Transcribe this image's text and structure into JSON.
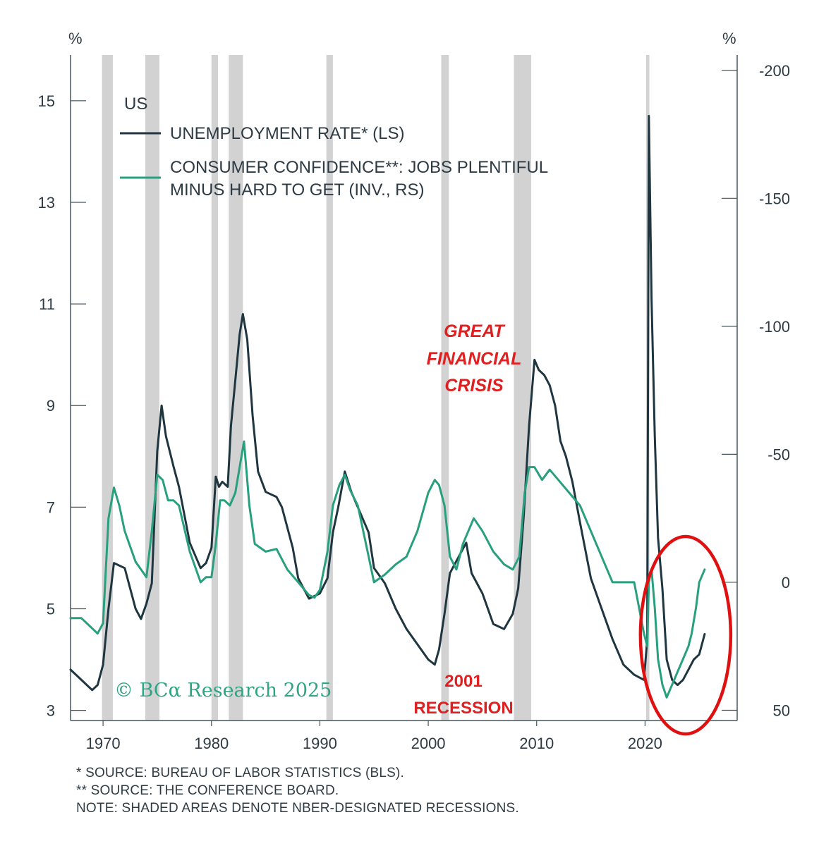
{
  "chart_data": {
    "type": "line",
    "title": "US",
    "left_axis": {
      "label": "%",
      "ticks": [
        3,
        5,
        7,
        9,
        11,
        13,
        15
      ],
      "range": [
        2.8,
        15.9
      ]
    },
    "right_axis": {
      "label": "%",
      "ticks": [
        -200,
        -150,
        -100,
        -50,
        0,
        50
      ],
      "range": [
        54,
        -206
      ],
      "inverted": true
    },
    "x_axis": {
      "ticks": [
        1970,
        1980,
        1990,
        2000,
        2010,
        2020
      ],
      "range": [
        1967.0,
        2028.5
      ]
    },
    "recessions": [
      [
        1969.9,
        1970.9
      ],
      [
        1973.9,
        1975.2
      ],
      [
        1980.0,
        1980.6
      ],
      [
        1981.6,
        1982.9
      ],
      [
        1990.6,
        1991.2
      ],
      [
        2001.2,
        2001.9
      ],
      [
        2007.9,
        2009.5
      ],
      [
        2020.1,
        2020.4
      ]
    ],
    "series": [
      {
        "name": "UNEMPLOYMENT RATE* (LS)",
        "axis": "left",
        "color": "#1f3640",
        "x": [
          1967.0,
          1968.0,
          1969.0,
          1969.5,
          1970.0,
          1970.5,
          1971.0,
          1972.0,
          1973.0,
          1973.5,
          1974.0,
          1974.5,
          1975.0,
          1975.4,
          1975.8,
          1976.5,
          1977.0,
          1978.0,
          1979.0,
          1979.5,
          1980.0,
          1980.4,
          1980.7,
          1981.0,
          1981.5,
          1981.8,
          1982.2,
          1982.6,
          1982.9,
          1983.3,
          1983.8,
          1984.3,
          1985.0,
          1986.0,
          1986.5,
          1987.5,
          1988.0,
          1989.0,
          1990.0,
          1990.7,
          1991.2,
          1991.7,
          1992.3,
          1992.9,
          1993.5,
          1994.5,
          1995.0,
          1996.0,
          1997.0,
          1998.0,
          1999.0,
          2000.0,
          2000.6,
          2001.0,
          2001.5,
          2002.0,
          2002.5,
          2003.0,
          2003.5,
          2004.0,
          2005.0,
          2006.0,
          2007.0,
          2007.8,
          2008.3,
          2008.8,
          2009.3,
          2009.8,
          2010.2,
          2010.7,
          2011.2,
          2011.7,
          2012.2,
          2012.7,
          2013.3,
          2014.0,
          2015.0,
          2016.0,
          2017.0,
          2018.0,
          2019.0,
          2019.9,
          2020.2,
          2020.35,
          2020.6,
          2020.9,
          2021.2,
          2021.6,
          2022.0,
          2022.5,
          2023.0,
          2023.5,
          2024.0,
          2024.5,
          2025.0,
          2025.5
        ],
        "values": [
          3.8,
          3.6,
          3.4,
          3.5,
          3.9,
          5.0,
          5.9,
          5.8,
          5.0,
          4.8,
          5.1,
          5.5,
          8.1,
          9.0,
          8.4,
          7.8,
          7.4,
          6.3,
          5.8,
          5.9,
          6.2,
          7.6,
          7.4,
          7.5,
          7.4,
          8.6,
          9.5,
          10.4,
          10.8,
          10.3,
          8.8,
          7.7,
          7.3,
          7.2,
          7.0,
          6.2,
          5.6,
          5.2,
          5.3,
          5.6,
          6.5,
          7.0,
          7.7,
          7.3,
          7.0,
          6.5,
          5.8,
          5.5,
          5.0,
          4.6,
          4.3,
          4.0,
          3.9,
          4.2,
          4.9,
          5.7,
          5.9,
          6.1,
          6.3,
          5.7,
          5.3,
          4.7,
          4.6,
          4.9,
          5.4,
          6.8,
          8.6,
          9.9,
          9.7,
          9.6,
          9.4,
          9.0,
          8.3,
          8.0,
          7.5,
          6.7,
          5.6,
          5.0,
          4.4,
          3.9,
          3.7,
          3.6,
          4.4,
          14.7,
          11.1,
          8.4,
          6.4,
          5.4,
          4.0,
          3.6,
          3.5,
          3.6,
          3.8,
          4.0,
          4.1,
          4.5
        ]
      },
      {
        "name": "CONSUMER CONFIDENCE**: JOBS PLENTIFUL MINUS HARD TO GET (INV., RS)",
        "axis": "right",
        "color": "#28a07e",
        "x": [
          1967.0,
          1968.0,
          1969.0,
          1969.5,
          1970.0,
          1970.5,
          1971.0,
          1971.5,
          1972.0,
          1973.0,
          1973.5,
          1974.0,
          1974.5,
          1975.0,
          1975.5,
          1976.0,
          1976.5,
          1977.0,
          1978.0,
          1979.0,
          1979.5,
          1980.0,
          1980.4,
          1980.8,
          1981.2,
          1981.7,
          1982.2,
          1982.6,
          1983.0,
          1983.5,
          1984.0,
          1985.0,
          1986.0,
          1987.0,
          1988.0,
          1989.0,
          1989.5,
          1990.0,
          1990.7,
          1991.2,
          1991.8,
          1992.3,
          1992.8,
          1993.5,
          1994.5,
          1995.0,
          1996.0,
          1997.0,
          1998.0,
          1999.0,
          2000.0,
          2000.6,
          2001.0,
          2001.5,
          2002.0,
          2002.6,
          2003.2,
          2003.7,
          2004.2,
          2005.0,
          2006.0,
          2007.0,
          2007.8,
          2008.4,
          2008.9,
          2009.3,
          2009.8,
          2010.5,
          2011.2,
          2012.0,
          2013.0,
          2014.0,
          2015.0,
          2016.0,
          2017.0,
          2018.0,
          2019.0,
          2019.9,
          2020.2,
          2020.35,
          2020.6,
          2020.9,
          2021.2,
          2021.6,
          2022.0,
          2022.5,
          2023.0,
          2023.5,
          2024.0,
          2024.3,
          2024.7,
          2025.0,
          2025.5
        ],
        "values": [
          14,
          14,
          18,
          20,
          16,
          -25,
          -37,
          -30,
          -20,
          -8,
          -5,
          -2,
          -20,
          -42,
          -40,
          -32,
          -32,
          -30,
          -12,
          0,
          -2,
          -2,
          -15,
          -32,
          -32,
          -30,
          -35,
          -45,
          -55,
          -30,
          -15,
          -12,
          -13,
          -5,
          0,
          5,
          6,
          3,
          -12,
          -30,
          -38,
          -42,
          -36,
          -30,
          -10,
          0,
          -3,
          -7,
          -10,
          -20,
          -35,
          -40,
          -38,
          -30,
          -10,
          -5,
          -15,
          -20,
          -25,
          -20,
          -12,
          -7,
          -5,
          -10,
          -35,
          -45,
          -45,
          -40,
          -44,
          -40,
          -35,
          -30,
          -20,
          -10,
          0,
          0,
          0,
          20,
          25,
          0,
          -5,
          10,
          30,
          40,
          45,
          40,
          35,
          30,
          25,
          20,
          10,
          0,
          -5
        ]
      }
    ],
    "annotations": [
      {
        "text_lines": [
          "GREAT",
          "FINANCIAL",
          "CRISIS"
        ],
        "color": "#e02020",
        "near_x": 2006.5
      },
      {
        "text_lines": [
          "2001",
          "RECESSION"
        ],
        "color": "#e02020",
        "near_x": 2003.7
      }
    ],
    "highlight": {
      "shape": "ellipse",
      "color": "#e01010",
      "around_years": [
        2021,
        2027
      ]
    },
    "watermark": "© BCα Research 2025"
  },
  "legend": {
    "title": "US",
    "entries": [
      {
        "line1": "UNEMPLOYMENT RATE* (LS)",
        "line2": "",
        "color": "#1f3640"
      },
      {
        "line1": "CONSUMER CONFIDENCE**: JOBS PLENTIFUL",
        "line2": "MINUS HARD TO GET (INV., RS)",
        "color": "#28a07e"
      }
    ]
  },
  "footnotes": [
    "*  SOURCE: BUREAU OF LABOR STATISTICS (BLS).",
    "** SOURCE: THE CONFERENCE BOARD.",
    "NOTE: SHADED AREAS DENOTE NBER-DESIGNATED RECESSIONS."
  ]
}
